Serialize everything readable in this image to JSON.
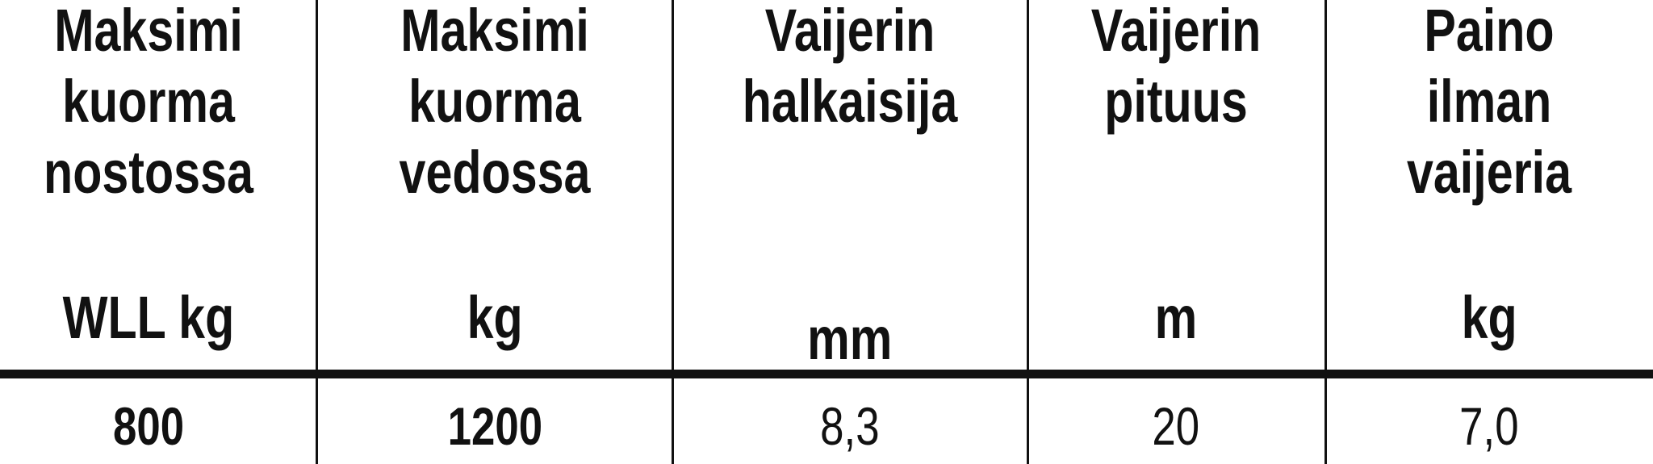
{
  "table": {
    "columns": [
      {
        "header": [
          "Maksimi",
          "kuorma",
          "nostossa"
        ],
        "unit": "WLL kg",
        "value": "800",
        "value_bold": true
      },
      {
        "header": [
          "Maksimi",
          "kuorma",
          "vedossa"
        ],
        "unit": "kg",
        "value": "1200",
        "value_bold": true
      },
      {
        "header": [
          "Vaijerin",
          "halkaisija"
        ],
        "unit": "mm",
        "value": "8,3",
        "value_bold": false
      },
      {
        "header": [
          "Vaijerin",
          "pituus"
        ],
        "unit": "m",
        "value": "20",
        "value_bold": false
      },
      {
        "header": [
          "Paino",
          "ilman",
          "vaijeria"
        ],
        "unit": "kg",
        "value": "7,0",
        "value_bold": false
      }
    ]
  }
}
